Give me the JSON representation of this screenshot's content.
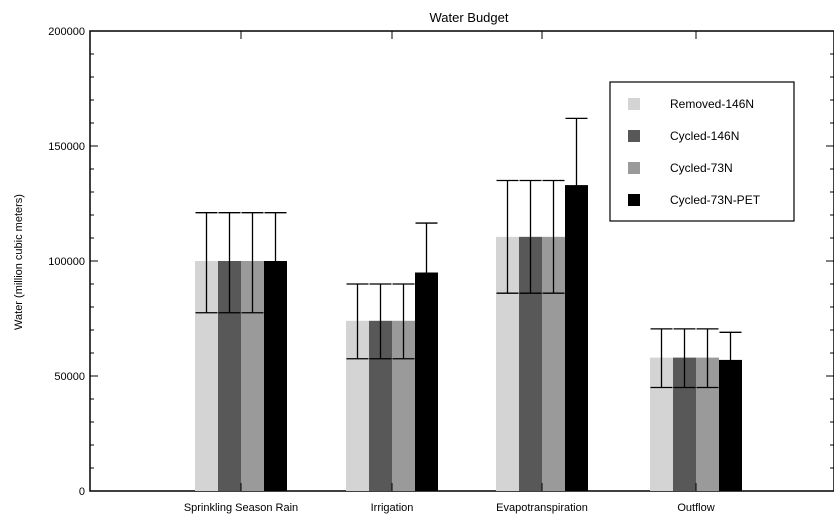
{
  "chart_data": {
    "type": "bar",
    "title": "Water Budget",
    "xlabel": "",
    "ylabel": "Water (million cubic meters)",
    "ylim": [
      0,
      200000
    ],
    "yticks": [
      0,
      50000,
      100000,
      150000,
      200000
    ],
    "ytick_labels": [
      "0",
      "50000",
      "100000",
      "150000",
      "200000"
    ],
    "categories": [
      "Sprinkling Season Rain",
      "Irrigation",
      "Evapotranspiration",
      "Outflow"
    ],
    "series": [
      {
        "name": "Removed-146N",
        "color": "#d4d4d4",
        "values": [
          100000,
          74000,
          110500,
          58000
        ],
        "error_low": [
          77500,
          57500,
          86000,
          45000
        ],
        "error_high": [
          121000,
          90000,
          135000,
          70500
        ]
      },
      {
        "name": "Cycled-146N",
        "color": "#585858",
        "values": [
          100000,
          74000,
          110500,
          58000
        ],
        "error_low": [
          77500,
          57500,
          86000,
          45000
        ],
        "error_high": [
          121000,
          90000,
          135000,
          70500
        ]
      },
      {
        "name": "Cycled-73N",
        "color": "#9a9a9a",
        "values": [
          100000,
          74000,
          110500,
          58000
        ],
        "error_low": [
          77500,
          57500,
          86000,
          45000
        ],
        "error_high": [
          121000,
          90000,
          135000,
          70500
        ]
      },
      {
        "name": "Cycled-73N-PET",
        "color": "#000000",
        "values": [
          100000,
          95000,
          133000,
          57000
        ],
        "error_low": [
          77500,
          74500,
          105000,
          45000
        ],
        "error_high": [
          121000,
          116500,
          162000,
          69000
        ]
      }
    ],
    "legend_position": "top-right",
    "grid": false
  }
}
